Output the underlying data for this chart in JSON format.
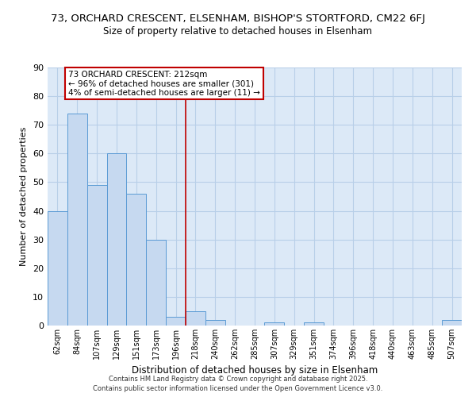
{
  "title": "73, ORCHARD CRESCENT, ELSENHAM, BISHOP'S STORTFORD, CM22 6FJ",
  "subtitle": "Size of property relative to detached houses in Elsenham",
  "xlabel": "Distribution of detached houses by size in Elsenham",
  "ylabel": "Number of detached properties",
  "bin_labels": [
    "62sqm",
    "84sqm",
    "107sqm",
    "129sqm",
    "151sqm",
    "173sqm",
    "196sqm",
    "218sqm",
    "240sqm",
    "262sqm",
    "285sqm",
    "307sqm",
    "329sqm",
    "351sqm",
    "374sqm",
    "396sqm",
    "418sqm",
    "440sqm",
    "463sqm",
    "485sqm",
    "507sqm"
  ],
  "bar_heights": [
    40,
    74,
    49,
    60,
    46,
    30,
    3,
    5,
    2,
    0,
    0,
    1,
    0,
    1,
    0,
    0,
    0,
    0,
    0,
    0,
    2
  ],
  "bar_color": "#c6d9f0",
  "bar_edge_color": "#5b9bd5",
  "vline_x": 7,
  "vline_color": "#c00000",
  "annotation_title": "73 ORCHARD CRESCENT: 212sqm",
  "annotation_line1": "← 96% of detached houses are smaller (301)",
  "annotation_line2": "4% of semi-detached houses are larger (11) →",
  "annotation_box_color": "#ffffff",
  "annotation_box_edge": "#c00000",
  "ylim": [
    0,
    90
  ],
  "yticks": [
    0,
    10,
    20,
    30,
    40,
    50,
    60,
    70,
    80,
    90
  ],
  "footnote1": "Contains HM Land Registry data © Crown copyright and database right 2025.",
  "footnote2": "Contains public sector information licensed under the Open Government Licence v3.0.",
  "bg_color": "#dce9f7",
  "fig_bg_color": "#ffffff",
  "grid_color": "#b8cfe8"
}
